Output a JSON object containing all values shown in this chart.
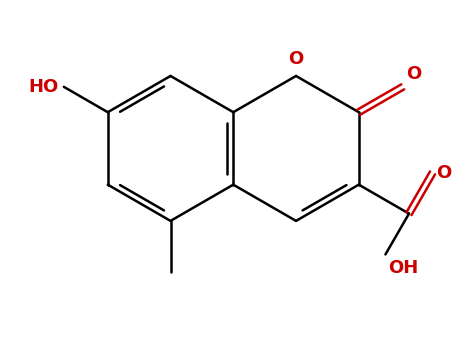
{
  "bg_color": "#ffffff",
  "bond_color": "#000000",
  "O_color": "#cc0000",
  "lw": 1.8,
  "dgap": 0.03,
  "S": 0.75,
  "xlim": [
    -2.4,
    2.2
  ],
  "ylim": [
    -1.6,
    1.8
  ],
  "figsize": [
    4.55,
    3.5
  ],
  "dpi": 100
}
